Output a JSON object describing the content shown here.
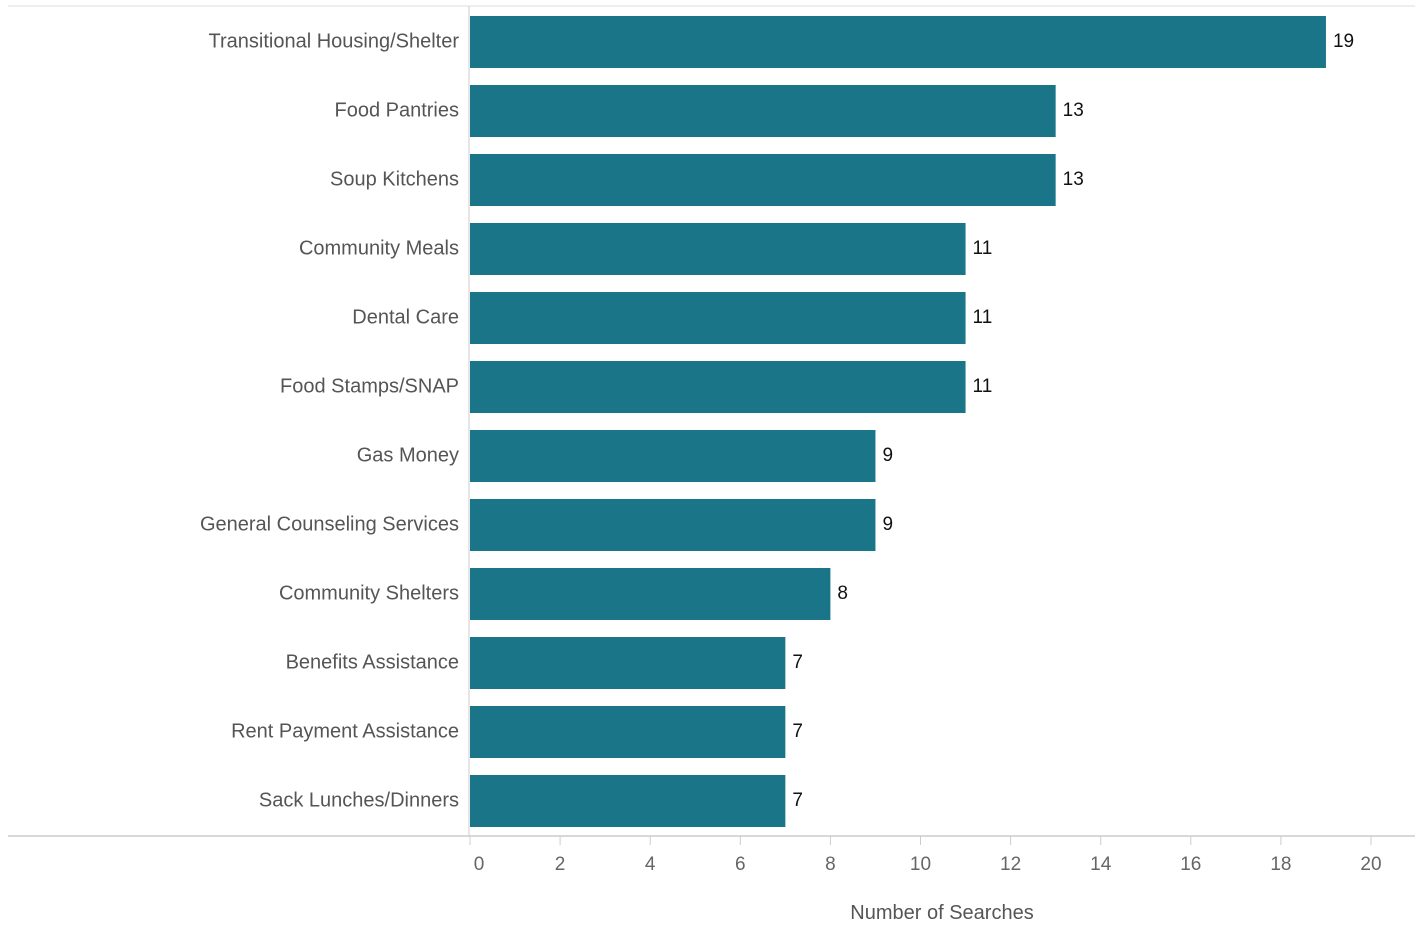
{
  "chart_data": {
    "type": "bar",
    "orientation": "horizontal",
    "categories": [
      "Transitional Housing/Shelter",
      "Food Pantries",
      "Soup Kitchens",
      "Community Meals",
      "Dental Care",
      "Food Stamps/SNAP",
      "Gas Money",
      "General Counseling Services",
      "Community Shelters",
      "Benefits Assistance",
      "Rent Payment Assistance",
      "Sack Lunches/Dinners"
    ],
    "values": [
      19,
      13,
      13,
      11,
      11,
      11,
      9,
      9,
      8,
      7,
      7,
      7
    ],
    "data_labels": [
      "19",
      "13",
      "13",
      "11",
      "11",
      "11",
      "9",
      "9",
      "8",
      "7",
      "7",
      "7"
    ],
    "xlabel": "Number of Searches",
    "ylabel": "",
    "title": "",
    "xlim": [
      0,
      20
    ],
    "xticks": [
      0,
      2,
      4,
      6,
      8,
      10,
      12,
      14,
      16,
      18,
      20
    ],
    "xtick_labels": [
      "0",
      "2",
      "4",
      "6",
      "8",
      "10",
      "12",
      "14",
      "16",
      "18",
      "20"
    ],
    "grid": false,
    "bar_color": "#1a7589"
  }
}
